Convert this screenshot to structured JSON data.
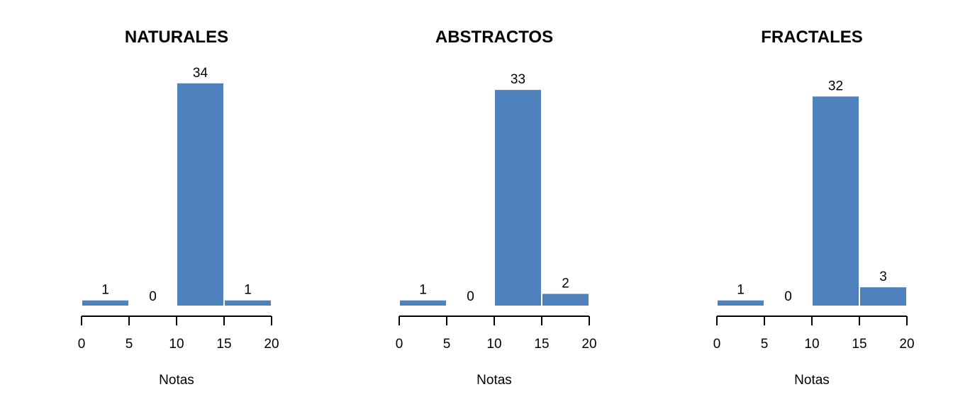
{
  "bar_color": "#4f81bd",
  "bar_edge": "#ffffff",
  "chart_data": [
    {
      "type": "bar",
      "title": "NATURALES",
      "xlabel": "Notas",
      "bin_edges": [
        0,
        5,
        10,
        15,
        20
      ],
      "values": [
        1,
        0,
        34,
        1
      ],
      "value_labels": [
        "1",
        "0",
        "34",
        "1"
      ],
      "xticks": [
        "0",
        "5",
        "10",
        "15",
        "20"
      ],
      "xlim": [
        0,
        20
      ]
    },
    {
      "type": "bar",
      "title": "ABSTRACTOS",
      "xlabel": "Notas",
      "bin_edges": [
        0,
        5,
        10,
        15,
        20
      ],
      "values": [
        1,
        0,
        33,
        2
      ],
      "value_labels": [
        "1",
        "0",
        "33",
        "2"
      ],
      "xticks": [
        "0",
        "5",
        "10",
        "15",
        "20"
      ],
      "xlim": [
        0,
        20
      ]
    },
    {
      "type": "bar",
      "title": "FRACTALES",
      "xlabel": "Notas",
      "bin_edges": [
        0,
        5,
        10,
        15,
        20
      ],
      "values": [
        1,
        0,
        32,
        3
      ],
      "value_labels": [
        "1",
        "0",
        "32",
        "3"
      ],
      "xticks": [
        "0",
        "5",
        "10",
        "15",
        "20"
      ],
      "xlim": [
        0,
        20
      ]
    }
  ]
}
